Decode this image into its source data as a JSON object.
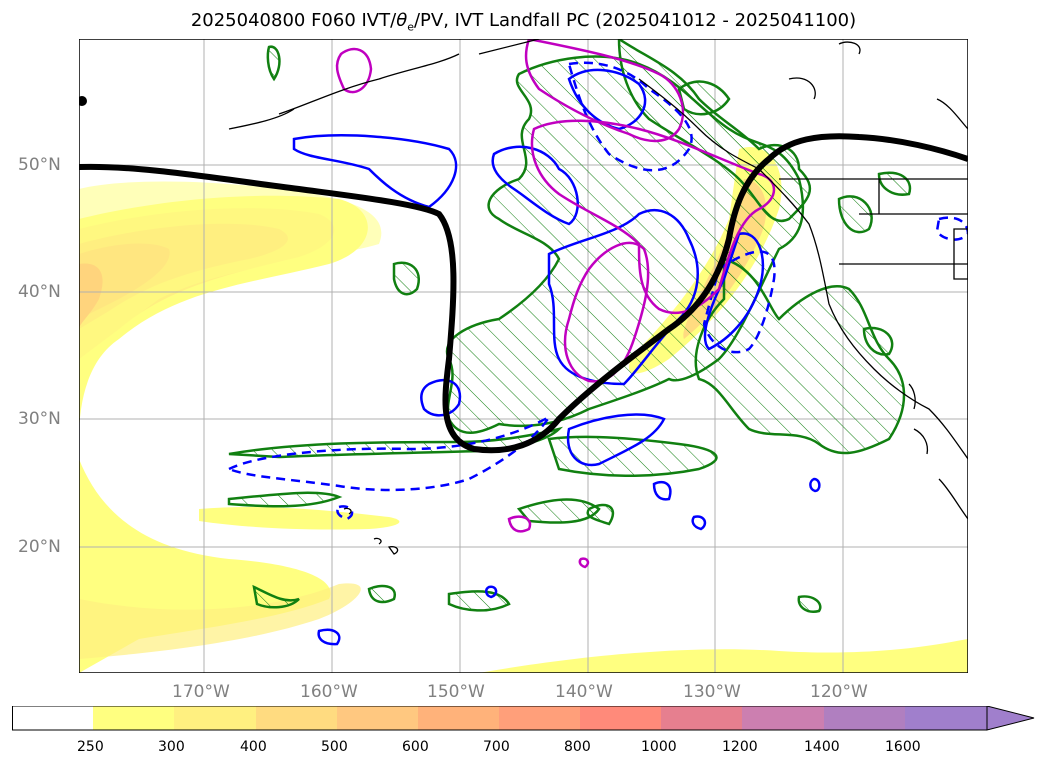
{
  "title": {
    "prefix": "2025040800 F060 IVT/",
    "theta": "θ",
    "theta_sub": "e",
    "suffix": "/PV, IVT Landfall PC (2025041012 - 2025041100)"
  },
  "lat_labels": [
    "50°N",
    "40°N",
    "30°N",
    "20°N"
  ],
  "lon_labels": [
    "170°W",
    "160°W",
    "150°W",
    "140°W",
    "130°W",
    "120°W"
  ],
  "colorbar": {
    "ticks": [
      "250",
      "300",
      "400",
      "500",
      "600",
      "700",
      "800",
      "1000",
      "1200",
      "1400",
      "1600"
    ],
    "colors": [
      "#ffffff",
      "#ffff80",
      "#fff080",
      "#ffdb80",
      "#ffc880",
      "#ffb27a",
      "#ff9f7a",
      "#ff8a7a",
      "#e67f8f",
      "#cc7fb0",
      "#b07fc0",
      "#a07fcc"
    ]
  },
  "colors": {
    "ivt_pc_hatch": "#118011",
    "theta_contour": "#0000ff",
    "pv_contour": "#c000c0",
    "jet_line": "#000000"
  }
}
